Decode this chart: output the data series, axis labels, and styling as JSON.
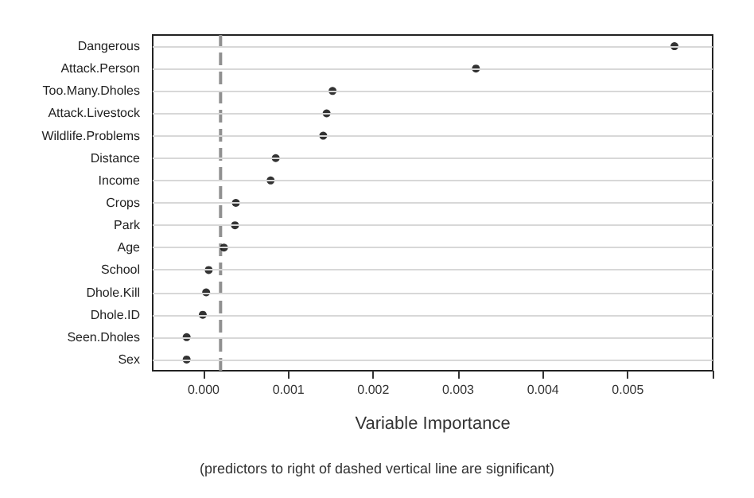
{
  "chart_data": {
    "type": "scatter",
    "orientation": "horizontal",
    "xlabel": "Variable Importance",
    "annotations": [
      "(predictors to right of dashed vertical line are significant)"
    ],
    "categories": [
      "Dangerous",
      "Attack.Person",
      "Too.Many.Dholes",
      "Attack.Livestock",
      "Wildlife.Problems",
      "Distance",
      "Income",
      "Crops",
      "Park",
      "Age",
      "School",
      "Dhole.Kill",
      "Dhole.ID",
      "Seen.Dholes",
      "Sex"
    ],
    "series": [
      {
        "color": "#000000",
        "values": [
          0.00555,
          0.00321,
          0.00152,
          0.00145,
          0.00141,
          0.00085,
          0.00079,
          0.00038,
          0.00037,
          0.00024,
          6e-05,
          3e-05,
          -1e-05,
          -0.0002,
          -0.0002
        ]
      }
    ],
    "xlim": [
      -0.0006,
      0.006
    ],
    "xticks": [
      {
        "value": 0,
        "label": "0.000"
      },
      {
        "value": 0.001,
        "label": "0.001"
      },
      {
        "value": 0.002,
        "label": "0.002"
      },
      {
        "value": 0.003,
        "label": "0.003"
      },
      {
        "value": 0.004,
        "label": "0.004"
      },
      {
        "value": 0.005,
        "label": "0.005"
      },
      {
        "value": 0.006,
        "label": null
      }
    ],
    "ref_lines": [
      {
        "axis": "x",
        "value": 0.0002,
        "color": "#909090",
        "line_style": "dashed"
      }
    ],
    "grid": "y",
    "marker": "circle"
  }
}
